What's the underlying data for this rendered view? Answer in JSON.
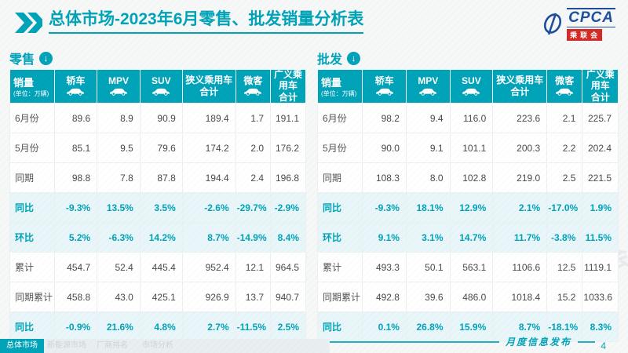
{
  "page": {
    "title": "总体市场-2023年6月零售、批发销量分析表"
  },
  "logo": {
    "text": "CPCA",
    "sub": "乘联会"
  },
  "watermark": "CPCA 乘联会",
  "footer": {
    "note": "月度信息发布",
    "page": "4"
  },
  "tabs": [
    {
      "label": "总体市场",
      "active": true
    },
    {
      "label": "新能源市场",
      "active": false
    },
    {
      "label": "厂商排名",
      "active": false
    },
    {
      "label": "市场分析",
      "active": false
    }
  ],
  "colors": {
    "accent": "#00a3b8",
    "highlight_bg": "#e8f6fa",
    "logo_blue": "#1d4f9e",
    "logo_red": "#d42b26",
    "text_dark": "#4a4a4a",
    "tab_inactive_bg": "#e9eef0"
  },
  "tables": [
    {
      "section": "零售",
      "unit_label": "销量",
      "unit_sub": "(单位：万辆)",
      "columns": [
        {
          "label": "轿车",
          "icon": "sedan-icon"
        },
        {
          "label": "MPV",
          "icon": "mpv-icon"
        },
        {
          "label": "SUV",
          "icon": "suv-icon"
        },
        {
          "label": "狭义乘用车",
          "line2": "合计"
        },
        {
          "label": "微客",
          "icon": "microvan-icon"
        },
        {
          "label": "广义乘用车",
          "line2": "合计"
        }
      ],
      "rows": [
        {
          "label": "6月份",
          "highlight": false,
          "values": [
            "89.6",
            "8.9",
            "90.9",
            "189.4",
            "1.7",
            "191.1"
          ]
        },
        {
          "label": "5月份",
          "highlight": false,
          "values": [
            "85.1",
            "9.5",
            "79.6",
            "174.2",
            "2.0",
            "176.2"
          ]
        },
        {
          "label": "同期",
          "highlight": false,
          "values": [
            "98.8",
            "7.8",
            "87.8",
            "194.4",
            "2.4",
            "196.8"
          ]
        },
        {
          "label": "同比",
          "highlight": true,
          "values": [
            "-9.3%",
            "13.5%",
            "3.5%",
            "-2.6%",
            "-29.7%",
            "-2.9%"
          ]
        },
        {
          "label": "环比",
          "highlight": true,
          "values": [
            "5.2%",
            "-6.3%",
            "14.2%",
            "8.7%",
            "-14.9%",
            "8.4%"
          ]
        },
        {
          "label": "累计",
          "highlight": false,
          "values": [
            "454.7",
            "52.4",
            "445.4",
            "952.4",
            "12.1",
            "964.5"
          ]
        },
        {
          "label": "同期累计",
          "highlight": false,
          "values": [
            "458.8",
            "43.0",
            "425.1",
            "926.9",
            "13.7",
            "940.7"
          ]
        },
        {
          "label": "同比",
          "highlight": true,
          "values": [
            "-0.9%",
            "21.6%",
            "4.8%",
            "2.7%",
            "-11.5%",
            "2.5%"
          ]
        }
      ]
    },
    {
      "section": "批发",
      "unit_label": "销量",
      "unit_sub": "(单位：万辆)",
      "columns": [
        {
          "label": "轿车",
          "icon": "sedan-icon"
        },
        {
          "label": "MPV",
          "icon": "mpv-icon"
        },
        {
          "label": "SUV",
          "icon": "suv-icon"
        },
        {
          "label": "狭义乘用车",
          "line2": "合计"
        },
        {
          "label": "微客",
          "icon": "microvan-icon"
        },
        {
          "label": "广义乘用车",
          "line2": "合计"
        }
      ],
      "rows": [
        {
          "label": "6月份",
          "highlight": false,
          "values": [
            "98.2",
            "9.4",
            "116.0",
            "223.6",
            "2.1",
            "225.7"
          ]
        },
        {
          "label": "5月份",
          "highlight": false,
          "values": [
            "90.0",
            "9.1",
            "101.1",
            "200.3",
            "2.2",
            "202.4"
          ]
        },
        {
          "label": "同期",
          "highlight": false,
          "values": [
            "108.3",
            "8.0",
            "102.8",
            "219.0",
            "2.5",
            "221.5"
          ]
        },
        {
          "label": "同比",
          "highlight": true,
          "values": [
            "-9.3%",
            "18.1%",
            "12.9%",
            "2.1%",
            "-17.0%",
            "1.9%"
          ]
        },
        {
          "label": "环比",
          "highlight": true,
          "values": [
            "9.1%",
            "3.1%",
            "14.7%",
            "11.7%",
            "-3.8%",
            "11.5%"
          ]
        },
        {
          "label": "累计",
          "highlight": false,
          "values": [
            "493.3",
            "50.1",
            "563.1",
            "1106.6",
            "12.5",
            "1119.1"
          ]
        },
        {
          "label": "同期累计",
          "highlight": false,
          "values": [
            "492.8",
            "39.6",
            "486.0",
            "1018.4",
            "15.2",
            "1033.6"
          ]
        },
        {
          "label": "同比",
          "highlight": true,
          "values": [
            "0.1%",
            "26.8%",
            "15.9%",
            "8.7%",
            "-18.1%",
            "8.3%"
          ]
        }
      ]
    }
  ]
}
